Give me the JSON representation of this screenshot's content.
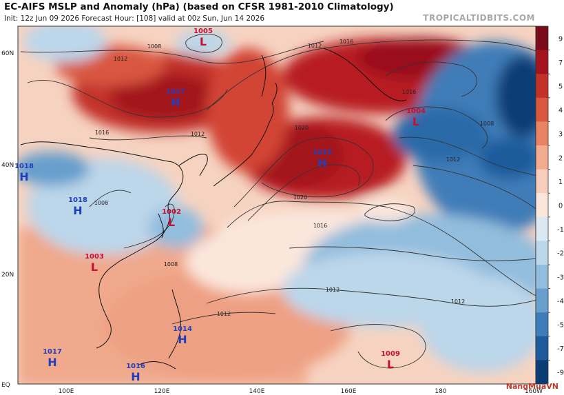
{
  "header": {
    "title": "EC-AIFS MSLP and Anomaly (hPa) (based on CFSR 1981-2010 Climatology)",
    "subtitle": "Init: 12z Jun 09 2026   Forecast Hour: [108]   valid at 00z Sun, Jun 14 2026",
    "brand": "TROPICALTIDBITS.COM"
  },
  "axes": {
    "lat_labels": [
      "60N",
      "40N",
      "20N",
      "EQ"
    ],
    "lon_labels": [
      "100E",
      "120E",
      "140E",
      "160E",
      "180",
      "160W"
    ]
  },
  "colorbar": {
    "labels": [
      "9",
      "7",
      "5",
      "4",
      "3",
      "2",
      "1",
      "0",
      "-1",
      "-2",
      "-3",
      "-4",
      "-5",
      "-7",
      "-9"
    ],
    "colors": [
      "#7a0c1a",
      "#a3141e",
      "#c43128",
      "#d9573f",
      "#e88463",
      "#f2ab8f",
      "#f8cdbb",
      "#fbe6dc",
      "#dbe7f1",
      "#bcd6ea",
      "#93bddd",
      "#689fcc",
      "#3f7db8",
      "#1f5b9c",
      "#0b3c74"
    ]
  },
  "pressure_centers": [
    {
      "type": "H",
      "value": "1017"
    },
    {
      "type": "L",
      "value": "1005"
    },
    {
      "type": "H",
      "value": "1025"
    },
    {
      "type": "L",
      "value": "1004"
    },
    {
      "type": "H",
      "value": "1018"
    },
    {
      "type": "L",
      "value": "1003"
    },
    {
      "type": "L",
      "value": "1002"
    },
    {
      "type": "H",
      "value": "1017"
    },
    {
      "type": "H",
      "value": "1016"
    },
    {
      "type": "H",
      "value": "1014"
    },
    {
      "type": "L",
      "value": "1009"
    },
    {
      "type": "H",
      "value": "1018"
    }
  ],
  "isobar_labels": [
    "1008",
    "1012",
    "1016",
    "1020",
    "1012",
    "1016",
    "1008",
    "1012",
    "1016",
    "1012",
    "1020",
    "1016",
    "1008",
    "1012",
    "1012",
    "1012",
    "1008"
  ],
  "colors": {
    "high_label": "#1f3fbf",
    "low_label": "#c8102e",
    "contour": "#333333"
  },
  "watermark": "NangMuaVN"
}
